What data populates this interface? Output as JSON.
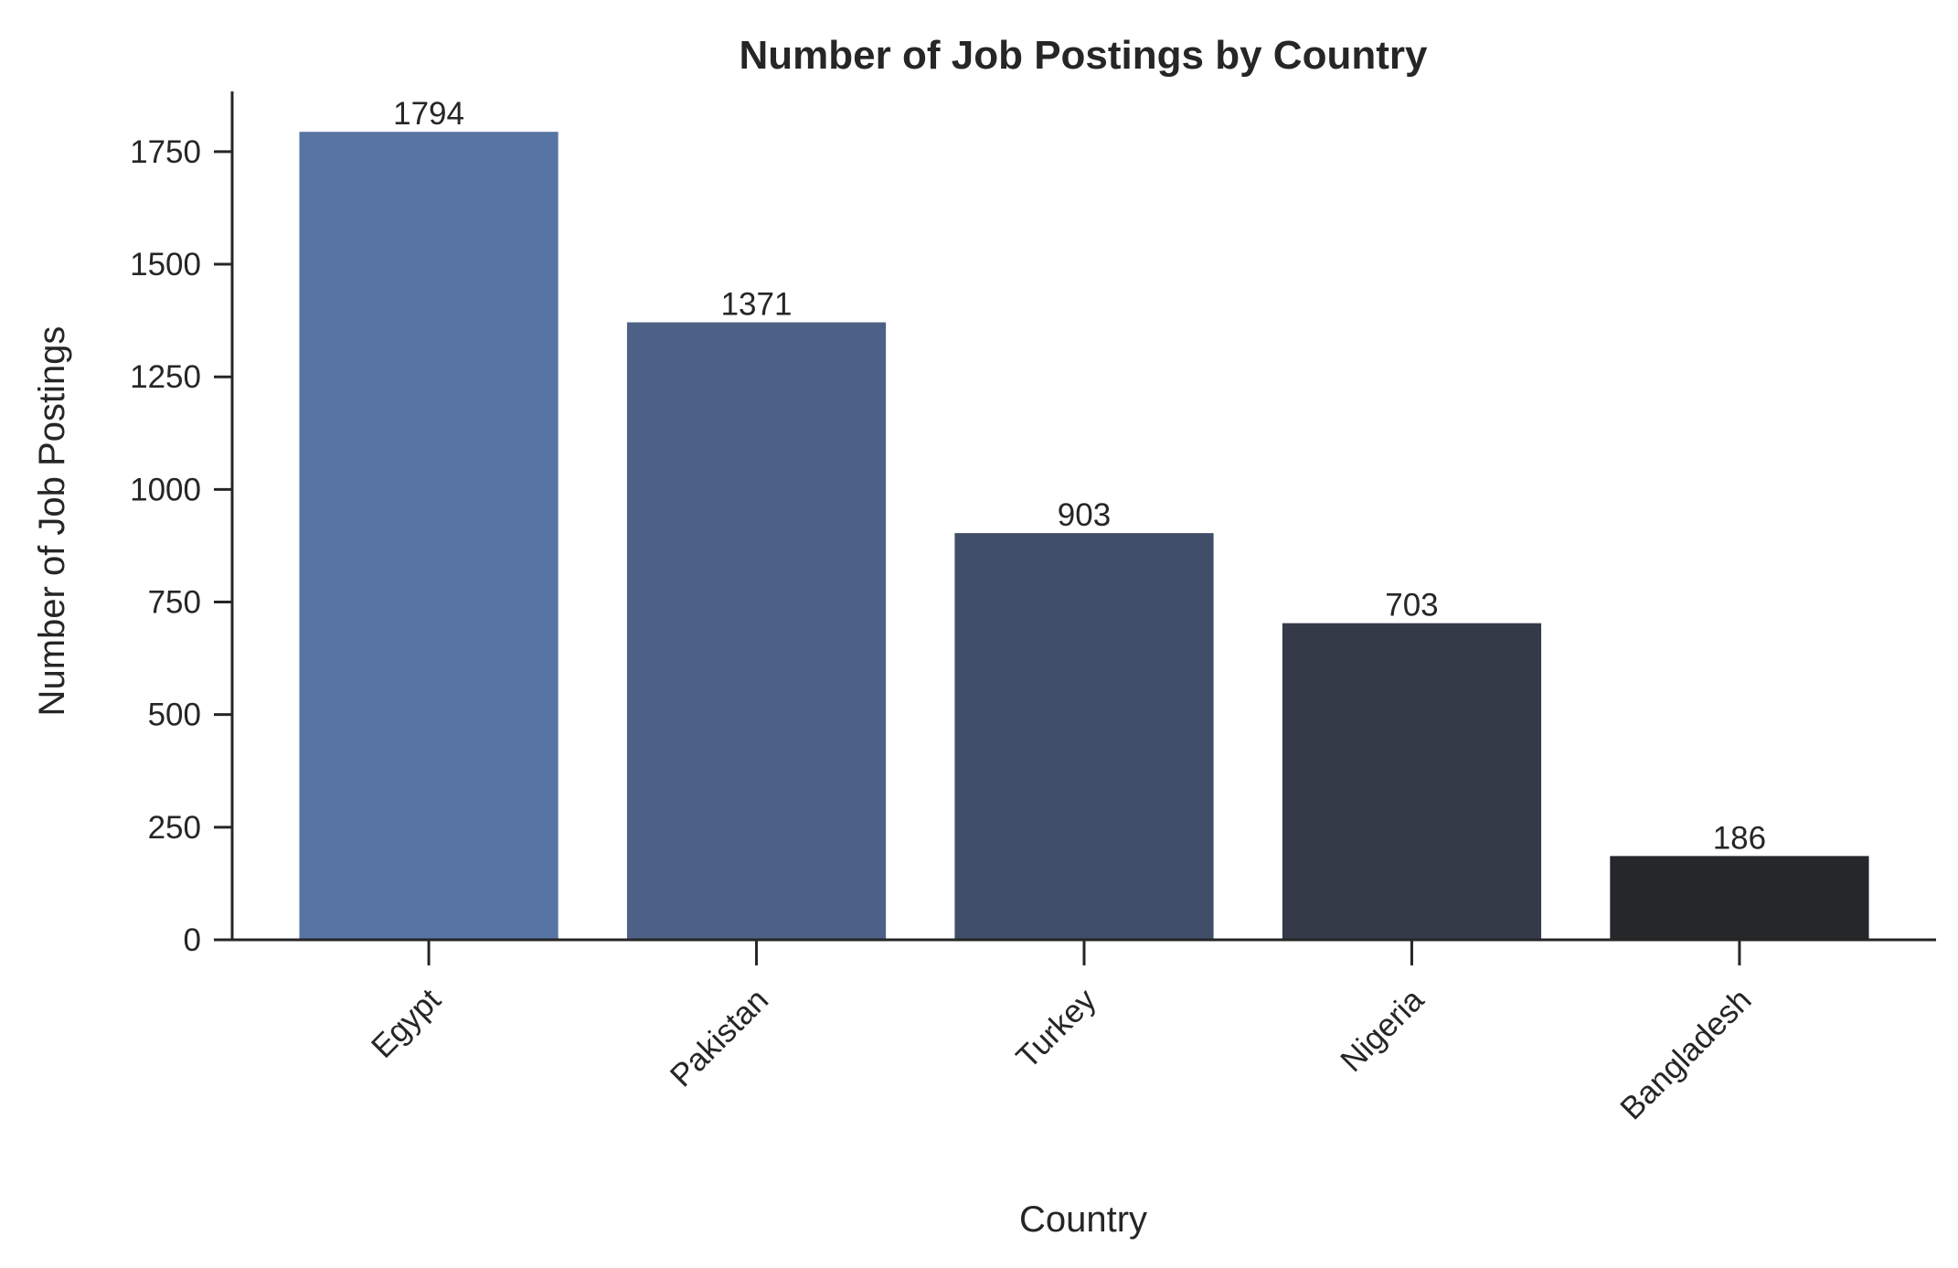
{
  "chart_data": {
    "type": "bar",
    "title": "Number of Job Postings by Country",
    "xlabel": "Country",
    "ylabel": "Number of Job Postings",
    "categories": [
      "Egypt",
      "Pakistan",
      "Turkey",
      "Nigeria",
      "Bangladesh"
    ],
    "values": [
      1794,
      1371,
      903,
      703,
      186
    ],
    "value_labels": [
      "1794",
      "1371",
      "903",
      "703",
      "186"
    ],
    "yticks": [
      0,
      250,
      500,
      750,
      1000,
      1250,
      1500,
      1750
    ],
    "ytick_labels": [
      "0",
      "250",
      "500",
      "750",
      "1000",
      "1250",
      "1500",
      "1750"
    ],
    "ylim": [
      0,
      1883.7
    ],
    "grid": false,
    "bar_colors": [
      "#5874a3",
      "#4d6086",
      "#404e69",
      "#343a48",
      "#26272b"
    ]
  }
}
